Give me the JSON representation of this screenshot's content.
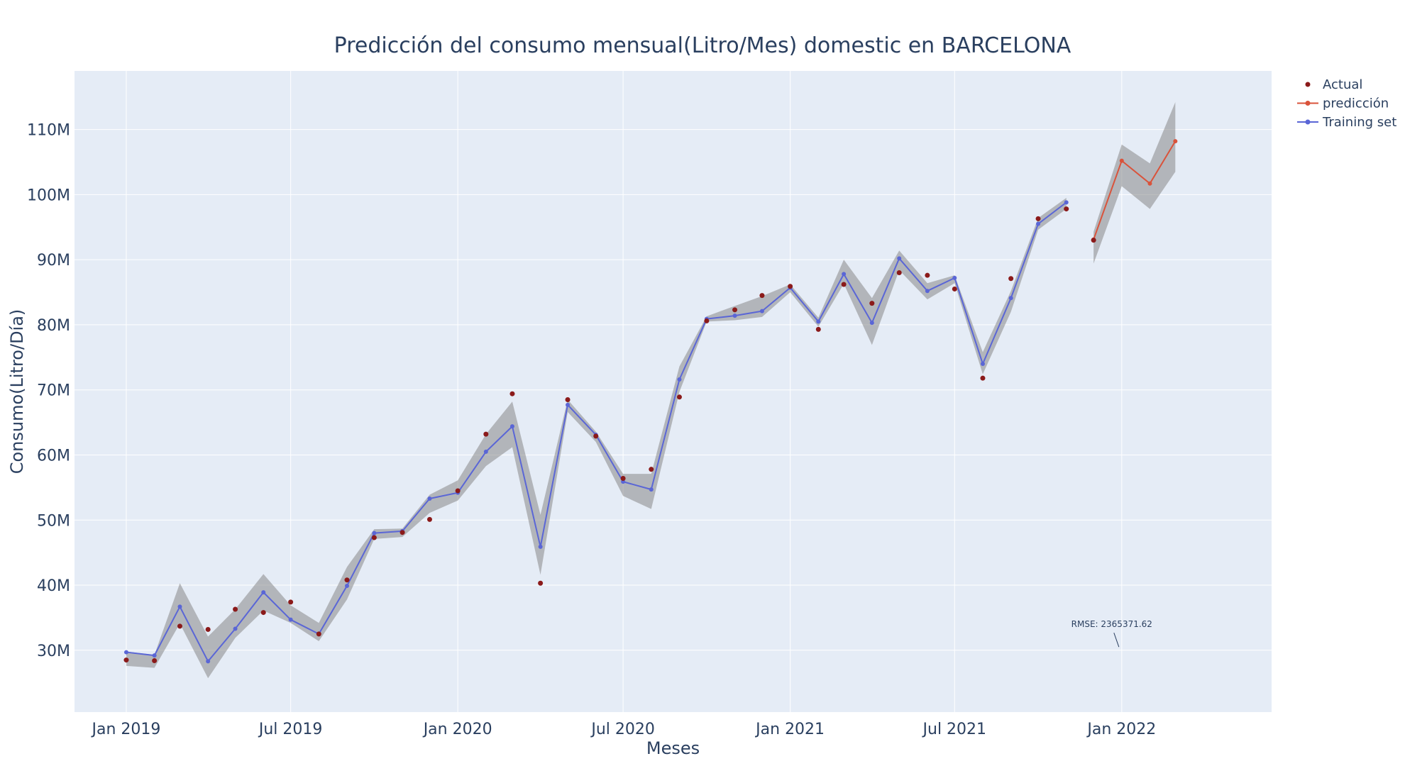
{
  "colors": {
    "plot_background": "#e5ecf6",
    "grid": "#ffffff",
    "band_fill": "#888888",
    "actual": "#8b1a1a",
    "prediction": "#d9533b",
    "training": "#5a66d6",
    "text": "#2a3f5f"
  },
  "chart_data": {
    "type": "line",
    "title": "Predicción del consumo mensual(Litro/Mes) domestic en BARCELONA",
    "xlabel": "Meses",
    "ylabel": "Consumo(Litro/Día)",
    "x_ticks": [
      {
        "date": "2019-01-01",
        "label": "Jan 2019"
      },
      {
        "date": "2019-07-01",
        "label": "Jul 2019"
      },
      {
        "date": "2020-01-01",
        "label": "Jan 2020"
      },
      {
        "date": "2020-07-01",
        "label": "Jul 2020"
      },
      {
        "date": "2021-01-01",
        "label": "Jan 2021"
      },
      {
        "date": "2021-07-01",
        "label": "Jul 2021"
      },
      {
        "date": "2022-01-01",
        "label": "Jan 2022"
      }
    ],
    "y_ticks": [
      {
        "value": 30000000,
        "label": "30M"
      },
      {
        "value": 40000000,
        "label": "40M"
      },
      {
        "value": 50000000,
        "label": "50M"
      },
      {
        "value": 60000000,
        "label": "60M"
      },
      {
        "value": 70000000,
        "label": "70M"
      },
      {
        "value": 80000000,
        "label": "80M"
      },
      {
        "value": 90000000,
        "label": "90M"
      },
      {
        "value": 100000000,
        "label": "100M"
      },
      {
        "value": 110000000,
        "label": "110M"
      }
    ],
    "xlim": [
      "2018-11-05",
      "2022-06-15"
    ],
    "ylim": [
      20500000,
      119000000
    ],
    "grid": true,
    "legend_position": "top-right",
    "series": [
      {
        "name": "Actual",
        "mode": "markers",
        "x": [
          "2019-01-01",
          "2019-02-01",
          "2019-03-01",
          "2019-04-01",
          "2019-05-01",
          "2019-06-01",
          "2019-07-01",
          "2019-08-01",
          "2019-09-01",
          "2019-10-01",
          "2019-11-01",
          "2019-12-01",
          "2020-01-01",
          "2020-02-01",
          "2020-03-01",
          "2020-04-01",
          "2020-05-01",
          "2020-06-01",
          "2020-07-01",
          "2020-08-01",
          "2020-09-01",
          "2020-10-01",
          "2020-11-01",
          "2020-12-01",
          "2021-01-01",
          "2021-02-01",
          "2021-03-01",
          "2021-04-01",
          "2021-05-01",
          "2021-06-01",
          "2021-07-01",
          "2021-08-01",
          "2021-09-01",
          "2021-10-01",
          "2021-11-01",
          "2021-12-01"
        ],
        "y": [
          28500000,
          28400000,
          33700000,
          33200000,
          36300000,
          35800000,
          37400000,
          32500000,
          40800000,
          47300000,
          48100000,
          50100000,
          54500000,
          63200000,
          69400000,
          40300000,
          68500000,
          62900000,
          56400000,
          57800000,
          68900000,
          80600000,
          82300000,
          84500000,
          85900000,
          79300000,
          86200000,
          83300000,
          88000000,
          87600000,
          85500000,
          71800000,
          87100000,
          96300000,
          97800000,
          93000000
        ]
      },
      {
        "name": "predicción",
        "mode": "lines+markers",
        "x": [
          "2021-12-01",
          "2022-01-01",
          "2022-02-01",
          "2022-03-01"
        ],
        "y": [
          93100000,
          105200000,
          101700000,
          108200000
        ],
        "upper": [
          94300000,
          107700000,
          104800000,
          114200000
        ],
        "lower": [
          89400000,
          101300000,
          97800000,
          103500000
        ]
      },
      {
        "name": "Training set",
        "mode": "lines+markers",
        "x": [
          "2019-01-01",
          "2019-02-01",
          "2019-03-01",
          "2019-04-01",
          "2019-05-01",
          "2019-06-01",
          "2019-07-01",
          "2019-08-01",
          "2019-09-01",
          "2019-10-01",
          "2019-11-01",
          "2019-12-01",
          "2020-01-01",
          "2020-02-01",
          "2020-03-01",
          "2020-04-01",
          "2020-05-01",
          "2020-06-01",
          "2020-07-01",
          "2020-08-01",
          "2020-09-01",
          "2020-10-01",
          "2020-11-01",
          "2020-12-01",
          "2021-01-01",
          "2021-02-01",
          "2021-03-01",
          "2021-04-01",
          "2021-05-01",
          "2021-06-01",
          "2021-07-01",
          "2021-08-01",
          "2021-09-01",
          "2021-10-01",
          "2021-11-01"
        ],
        "y": [
          29700000,
          29200000,
          36700000,
          28300000,
          33300000,
          38900000,
          34700000,
          32500000,
          39900000,
          48000000,
          48300000,
          53300000,
          54200000,
          60500000,
          64400000,
          45900000,
          67700000,
          63100000,
          55900000,
          54700000,
          71600000,
          80900000,
          81400000,
          82100000,
          85700000,
          80500000,
          87800000,
          80300000,
          90200000,
          85200000,
          87200000,
          74000000,
          84100000,
          95500000,
          98800000
        ],
        "upper": [
          29800000,
          29300000,
          40300000,
          32100000,
          36300000,
          41700000,
          36900000,
          34200000,
          42800000,
          48600000,
          48700000,
          53900000,
          56100000,
          63200000,
          68200000,
          50800000,
          68500000,
          63600000,
          57100000,
          57100000,
          73600000,
          81300000,
          82900000,
          84400000,
          86200000,
          81100000,
          90000000,
          84100000,
          91400000,
          86400000,
          87600000,
          75800000,
          85200000,
          96400000,
          99500000
        ],
        "lower": [
          27600000,
          27300000,
          34100000,
          25700000,
          31900000,
          36100000,
          34200000,
          31400000,
          37800000,
          47100000,
          47400000,
          51100000,
          53000000,
          58300000,
          61200000,
          41600000,
          66600000,
          62000000,
          53700000,
          51700000,
          69700000,
          80500000,
          80700000,
          81200000,
          85000000,
          79700000,
          86300000,
          76900000,
          88400000,
          83900000,
          86400000,
          72400000,
          82000000,
          94600000,
          97800000
        ]
      }
    ],
    "annotations": [
      {
        "text": "RMSE: 2365371.62",
        "x": "2022-01-01",
        "y": 30500000
      }
    ]
  }
}
